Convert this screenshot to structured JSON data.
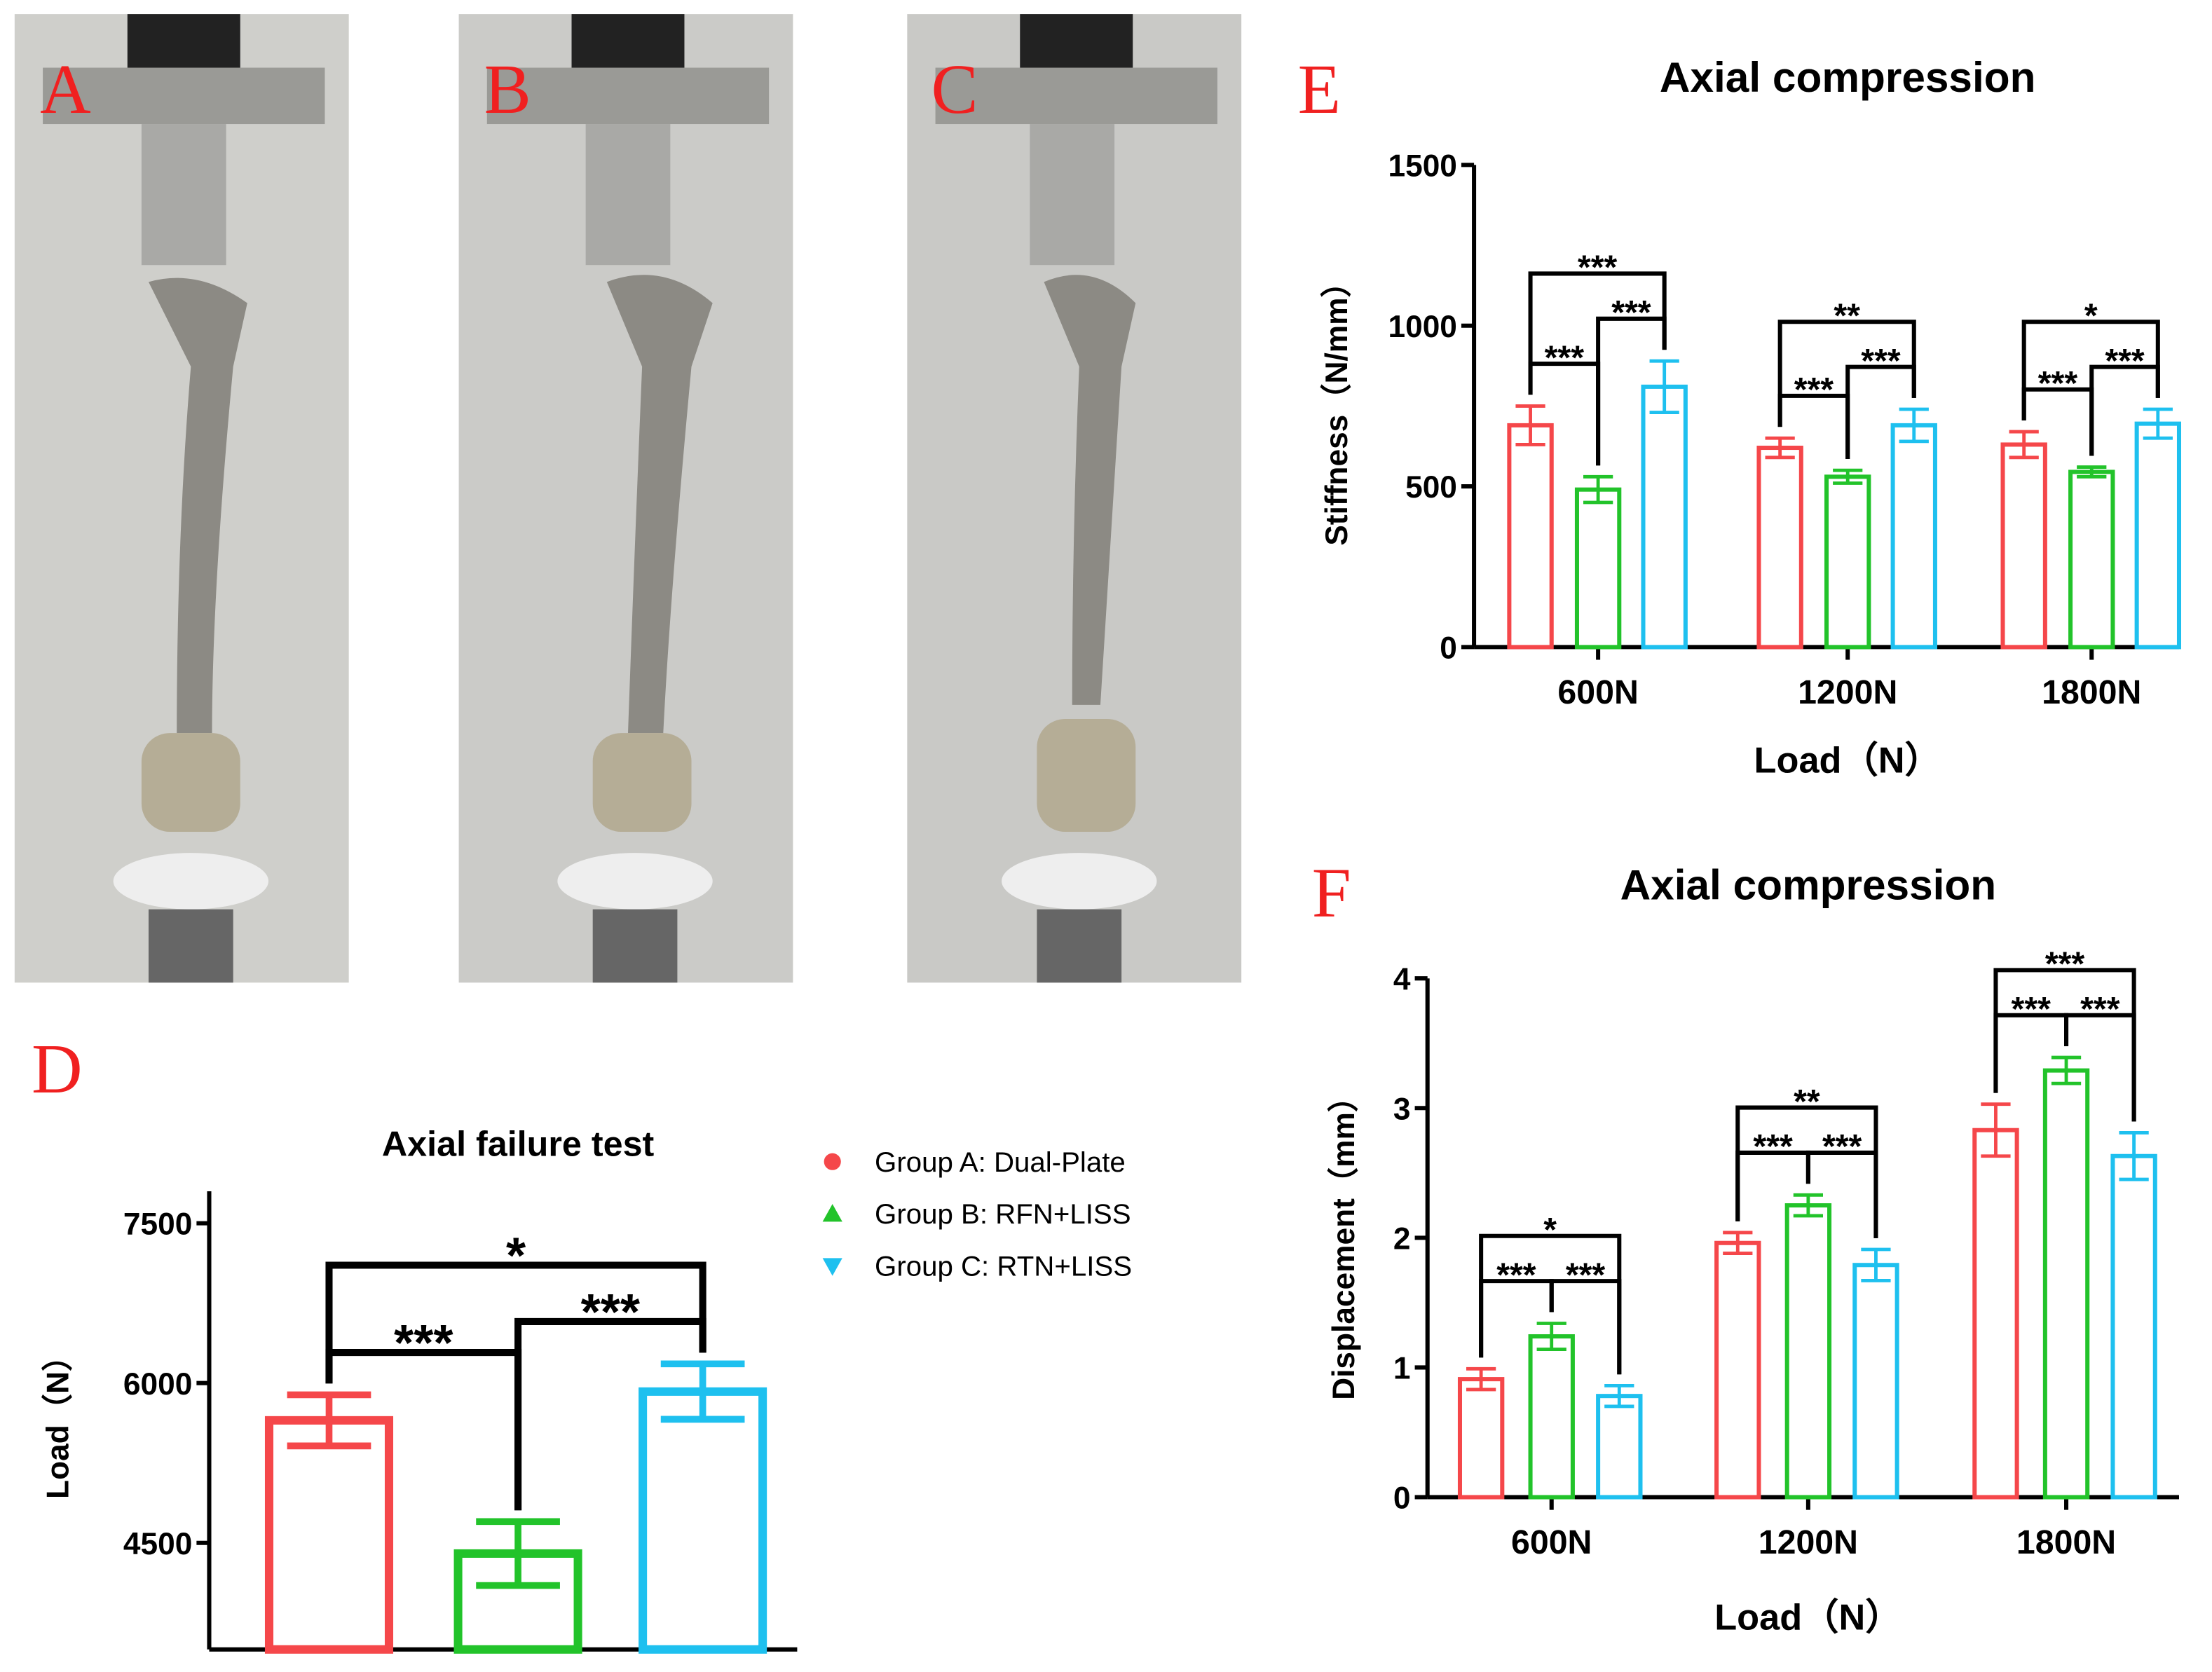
{
  "panel_labels": [
    "A",
    "B",
    "C",
    "D",
    "E",
    "F"
  ],
  "chart_data": [
    {
      "type": "bar",
      "title": "Axial failure test",
      "y_label": "Load（N）",
      "ylim": [
        3500,
        7800
      ],
      "yticks": [
        4500,
        6000,
        7500
      ],
      "series": [
        {
          "name": "Group A: Dual-Plate",
          "color": "#f5474a",
          "marker": "circle",
          "values": [
            5650
          ],
          "errors": [
            240
          ]
        },
        {
          "name": "Group B: RFN+LISS",
          "color": "#22c32a",
          "marker": "triangle-up",
          "values": [
            4400
          ],
          "errors": [
            300
          ]
        },
        {
          "name": "Group C: RTN+LISS",
          "color": "#1ec0ef",
          "marker": "triangle-down",
          "values": [
            5920
          ],
          "errors": [
            260
          ]
        }
      ],
      "significance": [
        [
          "***",
          "***",
          "*"
        ]
      ]
    },
    {
      "type": "bar",
      "title": "Axial compression",
      "x_label": "Load（N）",
      "y_label": "Stiffness（N/mm）",
      "categories": [
        "600N",
        "1200N",
        "1800N"
      ],
      "ylim": [
        0,
        1500
      ],
      "yticks": [
        0,
        500,
        1000,
        1500
      ],
      "series": [
        {
          "name": "Group A: Dual-Plate",
          "color": "#f5474a",
          "values": [
            690,
            620,
            630
          ],
          "errors": [
            60,
            30,
            40
          ]
        },
        {
          "name": "Group B: RFN+LISS",
          "color": "#22c32a",
          "values": [
            490,
            530,
            545
          ],
          "errors": [
            40,
            20,
            15
          ]
        },
        {
          "name": "Group C: RTN+LISS",
          "color": "#1ec0ef",
          "values": [
            810,
            690,
            695
          ],
          "errors": [
            80,
            50,
            45
          ]
        }
      ],
      "significance": [
        [
          "***",
          "***",
          "***"
        ],
        [
          "***",
          "***",
          "**"
        ],
        [
          "***",
          "***",
          "*"
        ]
      ]
    },
    {
      "type": "bar",
      "title": "Axial compression",
      "x_label": "Load（N）",
      "y_label": "Displacement（mm）",
      "categories": [
        "600N",
        "1200N",
        "1800N"
      ],
      "ylim": [
        0,
        4
      ],
      "yticks": [
        0,
        1,
        2,
        3,
        4
      ],
      "series": [
        {
          "name": "Group A: Dual-Plate",
          "color": "#f5474a",
          "values": [
            0.91,
            1.96,
            2.83
          ],
          "errors": [
            0.08,
            0.08,
            0.2
          ]
        },
        {
          "name": "Group B: RFN+LISS",
          "color": "#22c32a",
          "values": [
            1.24,
            2.25,
            3.29
          ],
          "errors": [
            0.1,
            0.08,
            0.1
          ]
        },
        {
          "name": "Group C: RTN+LISS",
          "color": "#1ec0ef",
          "values": [
            0.78,
            1.79,
            2.63
          ],
          "errors": [
            0.08,
            0.12,
            0.18
          ]
        }
      ],
      "significance": [
        [
          "***",
          "***",
          "*"
        ],
        [
          "***",
          "***",
          "**"
        ],
        [
          "***",
          "***",
          "***"
        ]
      ]
    }
  ]
}
